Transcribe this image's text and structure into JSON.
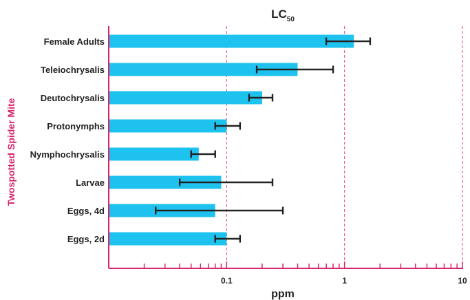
{
  "chart_data": {
    "type": "bar",
    "orientation": "horizontal",
    "title": "LC",
    "title_subscript": "50",
    "xlabel": "ppm",
    "ylabel": "Twospotted Spider Mite",
    "x_scale": "log",
    "xlim": [
      0.01,
      10
    ],
    "x_ticks": [
      0.1,
      1,
      10
    ],
    "x_tick_labels": [
      "0.1",
      "1",
      "10"
    ],
    "gridlines_at": [
      0.1,
      1,
      10
    ],
    "grid_style": "dashed-vertical",
    "categories": [
      "Female Adults",
      "Teleiochrysalis",
      "Deutochrysalis",
      "Protonymphs",
      "Nymphochrysalis",
      "Larvae",
      "Eggs, 4d",
      "Eggs, 2d"
    ],
    "values": [
      1.2,
      0.4,
      0.2,
      0.1,
      0.058,
      0.09,
      0.08,
      0.1
    ],
    "error_low": [
      0.7,
      0.18,
      0.155,
      0.08,
      0.05,
      0.04,
      0.025,
      0.08
    ],
    "error_high": [
      1.65,
      0.8,
      0.245,
      0.13,
      0.08,
      0.245,
      0.3,
      0.13
    ],
    "colors": {
      "bar": "#1ec2ee",
      "error": "#222222",
      "axis": "#d6246e",
      "grid": "#e0447e",
      "ylabel": "#d6246e"
    }
  }
}
